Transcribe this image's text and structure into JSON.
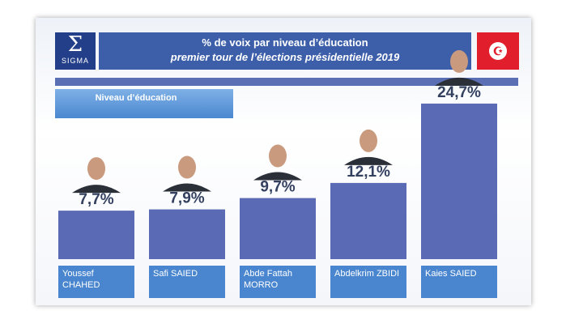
{
  "header": {
    "logo_text": "SIGMA",
    "title": "% de voix par niveau d’éducation",
    "subtitle": "premier tour de l’élections présidentielle 2019"
  },
  "section_label": "Niveau d’éducation",
  "colors": {
    "bar": "#5b6ab4",
    "label_bg": "#4a86cf",
    "value_text": "#33405f",
    "header": "#3d5faa",
    "flag": "#e01e2c"
  },
  "chart_data": {
    "type": "bar",
    "title": "% de voix par niveau d’éducation",
    "subtitle": "premier tour de l’élections présidentielle 2019",
    "categories": [
      "Youssef CHAHED",
      "Safi SAIED",
      "Abde Fattah MORRO",
      "Abdelkrim ZBIDI",
      "Kaies SAIED"
    ],
    "values": [
      7.7,
      7.9,
      9.7,
      12.1,
      24.7
    ],
    "value_labels": [
      "7,7%",
      "7,9%",
      "9,7%",
      "12,1%",
      "24,7%"
    ],
    "ylim": [
      0,
      27
    ],
    "grid": false,
    "legend": "none"
  }
}
